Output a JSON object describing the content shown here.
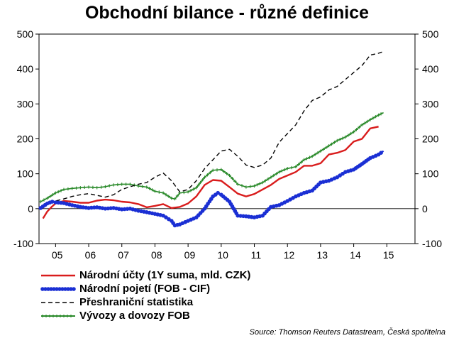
{
  "chart_data": {
    "type": "line",
    "title": "Obchodní bilance - různé definice",
    "xlabel": "",
    "ylabel": "",
    "x_range": [
      2004.5,
      2015.85
    ],
    "ylim": [
      -100,
      500
    ],
    "y_ticks": [
      -100,
      0,
      100,
      200,
      300,
      400,
      500
    ],
    "y_tick_labels": [
      "-100",
      "0",
      "100",
      "200",
      "300",
      "400",
      "500"
    ],
    "secondary_y_ticks": [
      -100,
      0,
      100,
      200,
      300,
      400,
      500
    ],
    "x_tick_labels": [
      "05",
      "06",
      "07",
      "08",
      "09",
      "10",
      "11",
      "12",
      "13",
      "14",
      "15"
    ],
    "x_tick_positions": [
      2005.0,
      2006.0,
      2007.0,
      2008.0,
      2009.0,
      2010.0,
      2011.0,
      2012.0,
      2013.0,
      2014.0,
      2015.0
    ],
    "grid": false,
    "legend_position": "bottom-left",
    "series": [
      {
        "name": "Národní účty (1Y suma, mld. CZK)",
        "color": "#d91c1c",
        "style": "solid",
        "x": [
          2004.62,
          2004.75,
          2004.88,
          2005.0,
          2005.25,
          2005.5,
          2005.75,
          2006.0,
          2006.25,
          2006.5,
          2006.75,
          2007.0,
          2007.25,
          2007.5,
          2007.75,
          2008.0,
          2008.25,
          2008.5,
          2008.75,
          2009.0,
          2009.25,
          2009.5,
          2009.75,
          2010.0,
          2010.25,
          2010.5,
          2010.75,
          2011.0,
          2011.25,
          2011.5,
          2011.75,
          2012.0,
          2012.25,
          2012.5,
          2012.75,
          2013.0,
          2013.25,
          2013.5,
          2013.75,
          2014.0,
          2014.25,
          2014.5,
          2014.75
        ],
        "y": [
          -28,
          -8,
          5,
          15,
          22,
          20,
          17,
          17,
          23,
          26,
          24,
          20,
          18,
          13,
          4,
          8,
          13,
          2,
          5,
          15,
          35,
          68,
          82,
          80,
          62,
          43,
          35,
          42,
          55,
          68,
          85,
          95,
          105,
          123,
          123,
          130,
          155,
          160,
          168,
          192,
          200,
          230,
          235
        ]
      },
      {
        "name": "Národní pojetí (FOB - CIF)",
        "color": "#1a2fd4",
        "style": "marker-line",
        "x": [
          2004.55,
          2004.75,
          2004.9,
          2005.0,
          2005.25,
          2005.5,
          2005.75,
          2006.0,
          2006.25,
          2006.5,
          2006.75,
          2007.0,
          2007.25,
          2007.5,
          2007.75,
          2008.0,
          2008.25,
          2008.5,
          2008.6,
          2008.75,
          2009.0,
          2009.25,
          2009.5,
          2009.75,
          2009.9,
          2010.0,
          2010.25,
          2010.5,
          2010.75,
          2011.0,
          2011.25,
          2011.5,
          2011.75,
          2012.0,
          2012.25,
          2012.5,
          2012.75,
          2013.0,
          2013.25,
          2013.5,
          2013.75,
          2014.0,
          2014.25,
          2014.5,
          2014.75,
          2014.9
        ],
        "y": [
          2,
          15,
          20,
          18,
          16,
          10,
          5,
          2,
          4,
          0,
          2,
          -2,
          0,
          -6,
          -10,
          -15,
          -20,
          -35,
          -48,
          -45,
          -35,
          -25,
          0,
          35,
          45,
          40,
          20,
          -20,
          -22,
          -25,
          -20,
          5,
          10,
          22,
          35,
          45,
          52,
          75,
          80,
          90,
          105,
          112,
          128,
          145,
          155,
          165
        ]
      },
      {
        "name": "Přeshraniční statistika",
        "color": "#000000",
        "style": "dashed",
        "x": [
          2004.62,
          2004.75,
          2005.0,
          2005.25,
          2005.5,
          2005.75,
          2006.0,
          2006.25,
          2006.5,
          2006.75,
          2007.0,
          2007.25,
          2007.5,
          2007.75,
          2008.0,
          2008.25,
          2008.5,
          2008.75,
          2009.0,
          2009.25,
          2009.5,
          2009.75,
          2010.0,
          2010.25,
          2010.5,
          2010.75,
          2011.0,
          2011.25,
          2011.5,
          2011.75,
          2012.0,
          2012.25,
          2012.5,
          2012.75,
          2013.0,
          2013.25,
          2013.5,
          2013.75,
          2014.0,
          2014.25,
          2014.5,
          2014.75,
          2014.9
        ],
        "y": [
          10,
          18,
          22,
          28,
          35,
          40,
          43,
          38,
          33,
          40,
          55,
          63,
          70,
          75,
          90,
          102,
          80,
          48,
          55,
          80,
          115,
          140,
          165,
          170,
          150,
          125,
          118,
          125,
          145,
          190,
          215,
          240,
          280,
          310,
          320,
          340,
          350,
          370,
          390,
          410,
          440,
          445,
          450
        ]
      },
      {
        "name": "Vývozy a dovozy FOB",
        "color": "#2a8a2a",
        "style": "marker-line",
        "x": [
          2004.55,
          2004.75,
          2005.0,
          2005.25,
          2005.5,
          2005.75,
          2006.0,
          2006.25,
          2006.5,
          2006.75,
          2007.0,
          2007.25,
          2007.5,
          2007.75,
          2008.0,
          2008.25,
          2008.5,
          2008.6,
          2008.75,
          2009.0,
          2009.25,
          2009.5,
          2009.75,
          2010.0,
          2010.25,
          2010.5,
          2010.75,
          2011.0,
          2011.25,
          2011.5,
          2011.75,
          2012.0,
          2012.25,
          2012.5,
          2012.75,
          2013.0,
          2013.25,
          2013.5,
          2013.75,
          2014.0,
          2014.25,
          2014.5,
          2014.75,
          2014.9
        ],
        "y": [
          20,
          30,
          45,
          55,
          58,
          60,
          62,
          60,
          63,
          68,
          70,
          70,
          65,
          62,
          50,
          45,
          30,
          28,
          45,
          48,
          60,
          90,
          110,
          112,
          95,
          70,
          62,
          65,
          75,
          90,
          105,
          115,
          120,
          140,
          150,
          165,
          180,
          195,
          205,
          220,
          240,
          255,
          268,
          275
        ]
      }
    ],
    "source": "Source: Thomson Reuters Datastream, Česká spořitelna"
  }
}
